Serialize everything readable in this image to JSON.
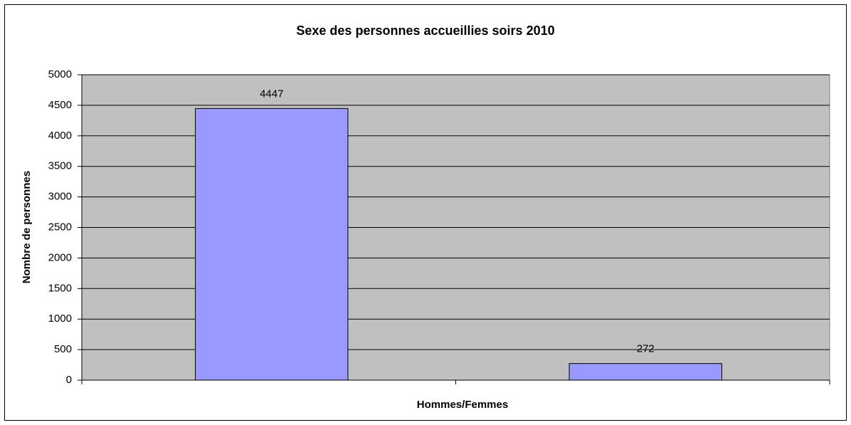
{
  "chart_data": {
    "type": "bar",
    "title": "Sexe des personnes accueillies soirs 2010",
    "x_label": "Hommes/Femmes",
    "y_label": "Nombre de personnes",
    "categories": [
      null,
      null
    ],
    "values": [
      4447,
      272
    ],
    "color": "#9999ff",
    "ylim": [
      0,
      5000
    ],
    "yticks": [
      0,
      500,
      1000,
      1500,
      2000,
      2500,
      3000,
      3500,
      4000,
      4500,
      5000
    ],
    "grid": true,
    "data_labels": true
  }
}
